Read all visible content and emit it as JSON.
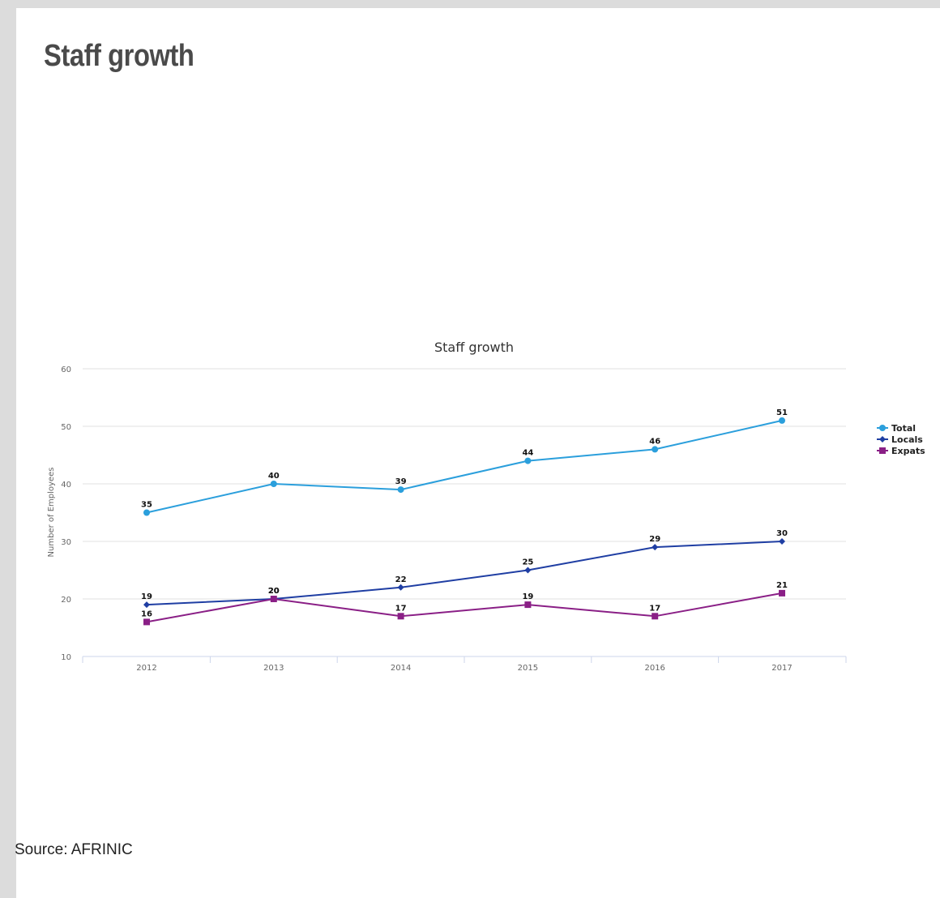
{
  "page": {
    "heading": "Staff growth",
    "source": "Source: AFRINIC"
  },
  "chart_data": {
    "type": "line",
    "title": "Staff growth",
    "xlabel": "",
    "ylabel": "Number of Employees",
    "categories": [
      "2012",
      "2013",
      "2014",
      "2015",
      "2016",
      "2017"
    ],
    "ylim": [
      10,
      60
    ],
    "yticks": [
      10,
      20,
      30,
      40,
      50,
      60
    ],
    "grid": true,
    "legend_position": "right",
    "data_labels": true,
    "series": [
      {
        "name": "Total",
        "values": [
          35,
          40,
          39,
          44,
          46,
          51
        ],
        "color": "#2b9fdc",
        "marker": "circle"
      },
      {
        "name": "Locals",
        "values": [
          19,
          20,
          22,
          25,
          29,
          30
        ],
        "color": "#1f3ea3",
        "marker": "diamond"
      },
      {
        "name": "Expats",
        "values": [
          16,
          20,
          17,
          19,
          17,
          21
        ],
        "color": "#8a1f86",
        "marker": "square"
      }
    ]
  }
}
